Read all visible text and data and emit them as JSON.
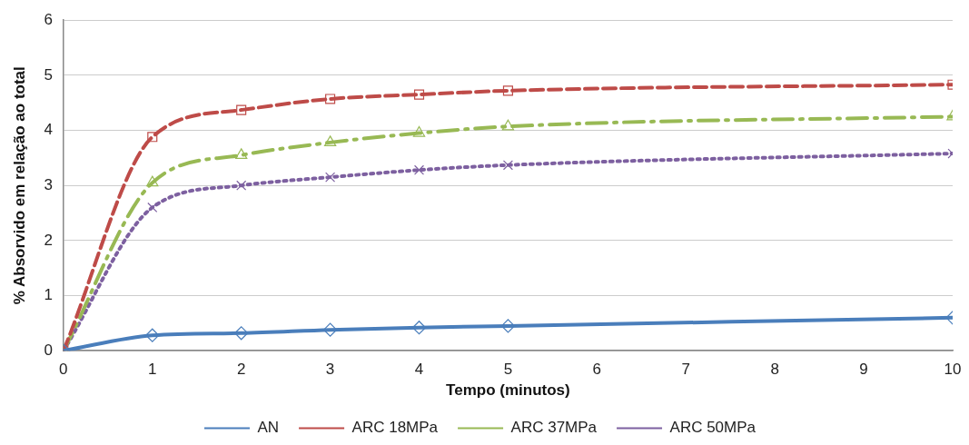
{
  "chart_data": {
    "type": "line",
    "xlabel": "Tempo (minutos)",
    "ylabel": "% Absorvido em relação ao total",
    "x": [
      0,
      1,
      2,
      3,
      4,
      5,
      10
    ],
    "series": [
      {
        "name": "AN",
        "color": "#4a7ebb",
        "values": [
          0,
          0.28,
          0.32,
          0.38,
          0.42,
          0.45,
          0.6
        ],
        "line_style": "solid",
        "marker": "diamond"
      },
      {
        "name": "ARC 18MPa",
        "color": "#be4b48",
        "values": [
          0,
          3.88,
          4.37,
          4.57,
          4.65,
          4.72,
          4.83
        ],
        "line_style": "dashed",
        "marker": "square"
      },
      {
        "name": "ARC 37MPa",
        "color": "#98b954",
        "values": [
          0,
          3.05,
          3.55,
          3.78,
          3.95,
          4.07,
          4.25
        ],
        "line_style": "dashdot",
        "marker": "triangle"
      },
      {
        "name": "ARC 50MPa",
        "color": "#7d60a0",
        "values": [
          0,
          2.6,
          3.0,
          3.15,
          3.28,
          3.37,
          3.58
        ],
        "line_style": "dotted",
        "marker": "cross"
      }
    ],
    "xlim": [
      0,
      10
    ],
    "xticks": [
      0,
      1,
      2,
      3,
      4,
      5,
      6,
      7,
      8,
      9,
      10
    ],
    "ylim": [
      0,
      6
    ],
    "yticks": [
      0,
      1,
      2,
      3,
      4,
      5,
      6
    ],
    "grid": "y",
    "legend": "bottom"
  }
}
